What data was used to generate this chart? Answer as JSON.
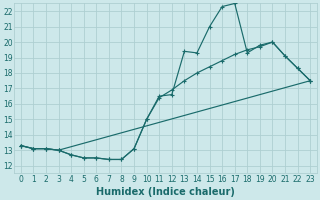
{
  "bg_color": "#cde8ea",
  "line_color": "#1a6b6b",
  "grid_color": "#aecfd2",
  "xlabel": "Humidex (Indice chaleur)",
  "xlabel_fontsize": 7,
  "xlim": [
    -0.5,
    23.5
  ],
  "ylim": [
    11.5,
    22.5
  ],
  "xticks": [
    0,
    1,
    2,
    3,
    4,
    5,
    6,
    7,
    8,
    9,
    10,
    11,
    12,
    13,
    14,
    15,
    16,
    17,
    18,
    19,
    20,
    21,
    22,
    23
  ],
  "yticks": [
    12,
    13,
    14,
    15,
    16,
    17,
    18,
    19,
    20,
    21,
    22
  ],
  "tick_fontsize": 5.5,
  "line1_x": [
    0,
    1,
    2,
    3,
    4,
    5,
    6,
    7,
    8,
    9,
    10,
    11,
    12,
    13,
    14,
    15,
    16,
    17,
    18,
    19,
    20,
    21,
    22,
    23
  ],
  "line1_y": [
    13.3,
    13.1,
    13.1,
    13.0,
    12.7,
    12.5,
    12.5,
    12.4,
    12.4,
    13.1,
    15.0,
    16.5,
    16.6,
    19.4,
    19.3,
    21.0,
    22.3,
    22.5,
    19.3,
    19.8,
    20.0,
    19.1,
    18.3,
    17.5
  ],
  "line2_x": [
    0,
    1,
    2,
    3,
    4,
    5,
    6,
    7,
    8,
    9,
    10,
    11,
    12,
    13,
    14,
    15,
    16,
    17,
    18,
    19,
    20,
    21,
    22,
    23
  ],
  "line2_y": [
    13.3,
    13.1,
    13.1,
    13.0,
    12.7,
    12.5,
    12.5,
    12.4,
    12.4,
    13.1,
    15.0,
    16.4,
    16.9,
    17.5,
    18.0,
    18.4,
    18.8,
    19.2,
    19.5,
    19.7,
    20.0,
    19.1,
    18.3,
    17.5
  ],
  "line3_x": [
    0,
    1,
    2,
    3,
    23
  ],
  "line3_y": [
    13.3,
    13.1,
    13.1,
    13.0,
    17.5
  ]
}
